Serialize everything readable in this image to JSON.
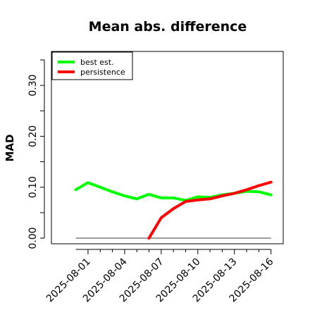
{
  "chart_data": {
    "type": "line",
    "title": "Mean abs. difference",
    "xlabel": "",
    "ylabel": "MAD",
    "ylim": [
      0,
      0.35
    ],
    "yticks": [
      "0.00",
      "0.10",
      "0.20",
      "0.30"
    ],
    "y_tick_values": [
      0.0,
      0.1,
      0.2,
      0.3
    ],
    "x_range": [
      "2025-07-29",
      "2025-08-17"
    ],
    "x_tick_labels": [
      "2025-08-01",
      "2025-08-04",
      "2025-08-07",
      "2025-08-10",
      "2025-08-13",
      "2025-08-16"
    ],
    "grid": false,
    "legend_position": "top-left",
    "baseline": {
      "y": 0.0,
      "x_start": "2025-07-31",
      "x_end": "2025-08-16",
      "color": "#7f7f7f"
    },
    "series": [
      {
        "name": "best est.",
        "color": "#00ff00",
        "x": [
          "2025-07-31",
          "2025-08-01",
          "2025-08-02",
          "2025-08-03",
          "2025-08-04",
          "2025-08-05",
          "2025-08-06",
          "2025-08-07",
          "2025-08-08",
          "2025-08-09",
          "2025-08-10",
          "2025-08-11",
          "2025-08-12",
          "2025-08-13",
          "2025-08-14",
          "2025-08-15",
          "2025-08-16"
        ],
        "y": [
          0.095,
          0.109,
          0.1,
          0.091,
          0.083,
          0.077,
          0.086,
          0.079,
          0.079,
          0.074,
          0.081,
          0.08,
          0.085,
          0.088,
          0.092,
          0.091,
          0.085
        ]
      },
      {
        "name": "persistence",
        "color": "#ff0000",
        "x": [
          "2025-08-06",
          "2025-08-07",
          "2025-08-08",
          "2025-08-09",
          "2025-08-10",
          "2025-08-11",
          "2025-08-12",
          "2025-08-13",
          "2025-08-14",
          "2025-08-15",
          "2025-08-16"
        ],
        "y": [
          0.0,
          0.04,
          0.058,
          0.072,
          0.075,
          0.077,
          0.083,
          0.088,
          0.095,
          0.103,
          0.11
        ]
      }
    ]
  }
}
